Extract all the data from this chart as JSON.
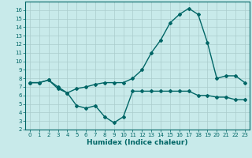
{
  "xlabel": "Humidex (Indice chaleur)",
  "ylabel": "",
  "xlim": [
    -0.5,
    23.5
  ],
  "ylim": [
    2,
    17
  ],
  "yticks": [
    2,
    3,
    4,
    5,
    6,
    7,
    8,
    9,
    10,
    11,
    12,
    13,
    14,
    15,
    16
  ],
  "xticks": [
    0,
    1,
    2,
    3,
    4,
    5,
    6,
    7,
    8,
    9,
    10,
    11,
    12,
    13,
    14,
    15,
    16,
    17,
    18,
    19,
    20,
    21,
    22,
    23
  ],
  "bg_color": "#c8eaea",
  "grid_color": "#aacccc",
  "line_color": "#006666",
  "line1_x": [
    0,
    1,
    2,
    3,
    4,
    5,
    6,
    7,
    8,
    9,
    10,
    11,
    12,
    13,
    14,
    15,
    16,
    17,
    18,
    19,
    20,
    21,
    22,
    23
  ],
  "line1_y": [
    7.5,
    7.5,
    7.8,
    7.0,
    6.3,
    6.8,
    7.0,
    7.3,
    7.5,
    7.5,
    7.5,
    8.0,
    9.0,
    11.0,
    12.5,
    14.5,
    15.5,
    16.2,
    15.5,
    12.2,
    8.0,
    8.3,
    8.3,
    7.5
  ],
  "line2_x": [
    0,
    1,
    2,
    3,
    4,
    5,
    6,
    7,
    8,
    9,
    10,
    11,
    12,
    13,
    14,
    15,
    16,
    17,
    18,
    19,
    20,
    21,
    22,
    23
  ],
  "line2_y": [
    7.5,
    7.5,
    7.8,
    6.8,
    6.3,
    4.8,
    4.5,
    4.8,
    3.5,
    2.8,
    3.5,
    6.5,
    6.5,
    6.5,
    6.5,
    6.5,
    6.5,
    6.5,
    6.0,
    6.0,
    5.8,
    5.8,
    5.5,
    5.5
  ],
  "marker": "D",
  "marker_size": 2,
  "linewidth": 1.0,
  "tick_fontsize": 5,
  "xlabel_fontsize": 6.5
}
